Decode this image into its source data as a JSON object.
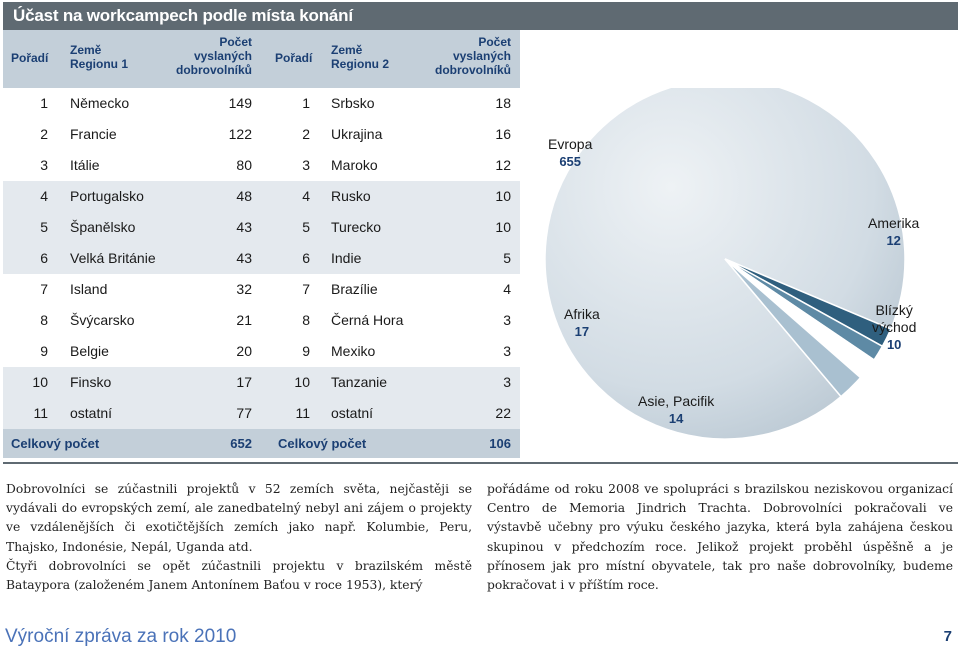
{
  "title": "Účast na workcampech podle místa konání",
  "headers": {
    "rank1": "Pořadí",
    "country1_line1": "Země",
    "country1_line2": "Regionu 1",
    "count1_line1": "Počet",
    "count1_line2": "vyslaných",
    "count1_line3": "dobrovolníků",
    "rank2": "Pořadí",
    "country2_line1": "Země",
    "country2_line2": "Regionu 2",
    "count2_line1": "Počet",
    "count2_line2": "vyslaných",
    "count2_line3": "dobrovolníků"
  },
  "rows": [
    {
      "r1": "1",
      "c1": "Německo",
      "v1": "149",
      "r2": "1",
      "c2": "Srbsko",
      "v2": "18"
    },
    {
      "r1": "2",
      "c1": "Francie",
      "v1": "122",
      "r2": "2",
      "c2": "Ukrajina",
      "v2": "16"
    },
    {
      "r1": "3",
      "c1": "Itálie",
      "v1": "80",
      "r2": "3",
      "c2": "Maroko",
      "v2": "12"
    },
    {
      "r1": "4",
      "c1": "Portugalsko",
      "v1": "48",
      "r2": "4",
      "c2": "Rusko",
      "v2": "10"
    },
    {
      "r1": "5",
      "c1": "Španělsko",
      "v1": "43",
      "r2": "5",
      "c2": "Turecko",
      "v2": "10"
    },
    {
      "r1": "6",
      "c1": "Velká Británie",
      "v1": "43",
      "r2": "6",
      "c2": "Indie",
      "v2": "5"
    },
    {
      "r1": "7",
      "c1": "Island",
      "v1": "32",
      "r2": "7",
      "c2": "Brazílie",
      "v2": "4"
    },
    {
      "r1": "8",
      "c1": "Švýcarsko",
      "v1": "21",
      "r2": "8",
      "c2": "Černá Hora",
      "v2": "3"
    },
    {
      "r1": "9",
      "c1": "Belgie",
      "v1": "20",
      "r2": "9",
      "c2": "Mexiko",
      "v2": "3"
    },
    {
      "r1": "10",
      "c1": "Finsko",
      "v1": "17",
      "r2": "10",
      "c2": "Tanzanie",
      "v2": "3"
    },
    {
      "r1": "11",
      "c1": "ostatní",
      "v1": "77",
      "r2": "11",
      "c2": "ostatní",
      "v2": "22"
    }
  ],
  "totals": {
    "label1": "Celkový počet",
    "value1": "652",
    "label2": "Celkový počet",
    "value2": "106"
  },
  "chart_data": {
    "type": "pie",
    "title": "",
    "slices": [
      {
        "name": "Evropa",
        "value": 655,
        "color": "#cfd9e1"
      },
      {
        "name": "Amerika",
        "value": 12,
        "color": "#2f5f7e"
      },
      {
        "name": "Blízký východ",
        "value": 10,
        "color": "#5e8aa5"
      },
      {
        "name": "Asie, Pacifik",
        "value": 14,
        "color": "#ffffff"
      },
      {
        "name": "Afrika",
        "value": 17,
        "color": "#a9c0d0"
      }
    ],
    "labels": {
      "evropa": {
        "name": "Evropa",
        "value": "655"
      },
      "amerika": {
        "name": "Amerika",
        "value": "12"
      },
      "blizky_line1": "Blízký",
      "blizky_line2": "východ",
      "blizky_value": "10",
      "asie": {
        "name": "Asie, Pacifik",
        "value": "14"
      },
      "afrika": {
        "name": "Afrika",
        "value": "17"
      }
    }
  },
  "text": {
    "left_p1": "Dobrovolníci se zúčastnili projektů v 52 zemích světa, nejčastěji se vydávali do evropských zemí, ale zanedbatelný nebyl ani zájem o projekty ve vzdálenějších či exotičtějších zemích jako např. Kolumbie, Peru, Thajsko, Indonésie, Nepál, Uganda atd.",
    "left_p2": "Čtyři dobrovolníci se opět zúčastnili projektu v brazilském městě Bataypora (založeném Janem Antonínem Baťou v roce 1953), který",
    "right_p1": "pořádáme od roku 2008 ve spolupráci s brazilskou neziskovou organizací Centro de Memoria Jindrich Trachta. Dobrovolníci pokračovali ve výstavbě učebny pro výuku českého jazyka, která byla zahájena českou skupinou v předchozím roce. Jelikož projekt proběhl úspěšně a je přínosem jak pro místní obyvatele, tak pro naše dobrovolníky, budeme pokračovat i v příštím roce."
  },
  "footer": {
    "title": "Výroční zpráva za rok 2010",
    "page": "7"
  }
}
